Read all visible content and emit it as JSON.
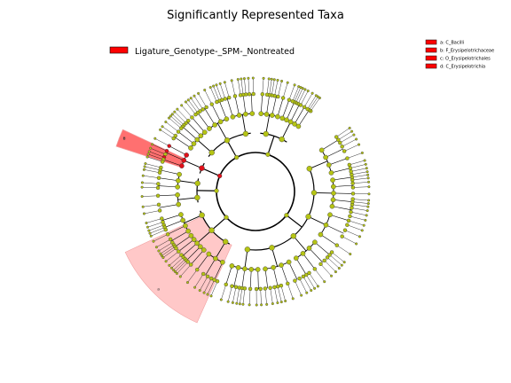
{
  "chart_data": {
    "type": "cladogram",
    "title": "Significantly Represented Taxa",
    "legend": {
      "placement": "top-left",
      "entries": [
        {
          "name": "Ligature_Genotype-_SPM-_Nontreated",
          "color": "#ff0000"
        }
      ]
    },
    "key": {
      "placement": "top-right",
      "entries": [
        {
          "label": "a: C_Bacilli",
          "color": "#ff0000"
        },
        {
          "label": "b: F_Erysipelotrichaceae",
          "color": "#ff0000"
        },
        {
          "label": "c: O_Erysipelotrichales",
          "color": "#ff0000"
        },
        {
          "label": "d: C_Erysipelotrichia",
          "color": "#ff0000"
        }
      ]
    },
    "highlighted_clades": [
      {
        "letter": "a",
        "start_deg": 205,
        "end_deg": 246,
        "color": "#ffc8c8"
      },
      {
        "letter": "d",
        "start_deg": 155,
        "end_deg": 162,
        "color": "#ffc8c8"
      },
      {
        "letter": "c",
        "start_deg": 155,
        "end_deg": 162,
        "color": "#ff9a9a"
      },
      {
        "letter": "b",
        "start_deg": 155,
        "end_deg": 162,
        "color": "#ff7070"
      }
    ],
    "colors": {
      "node_default": "#b5c414",
      "node_enriched": "#e0101a",
      "edge": "#000000"
    }
  }
}
